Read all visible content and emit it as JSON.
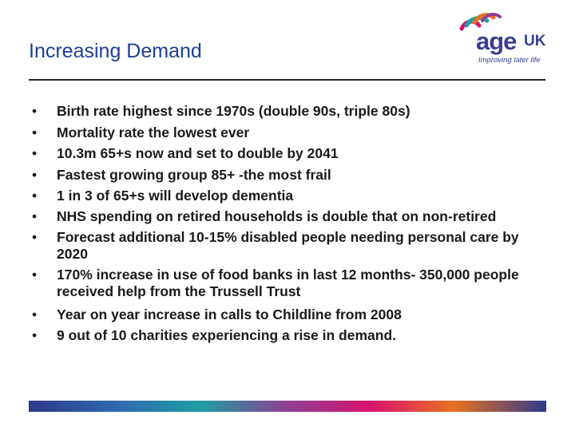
{
  "title": "Increasing Demand",
  "logo": {
    "brand_age": "age",
    "brand_uk": "UK",
    "tagline": "Improving later life"
  },
  "bullets": [
    "Birth rate highest since 1970s (double 90s, triple 80s)",
    "Mortality rate the lowest ever",
    "10.3m 65+s now and set to double by 2041",
    "Fastest growing group 85+ -the most frail",
    "1 in 3 of 65+s will develop dementia",
    "NHS spending on retired households is double that on non-retired",
    "Forecast additional 10-15% disabled people needing personal care by 2020",
    "170% increase in use of food banks in last 12 months- 350,000 people received help from the Trussell Trust",
    "Year on year increase in calls to Childline from 2008",
    "9 out of 10 charities experiencing a rise in demand."
  ],
  "bullet_symbol": "•",
  "colors": {
    "title": "#1f3f96",
    "brand": "#3b3f8f"
  }
}
